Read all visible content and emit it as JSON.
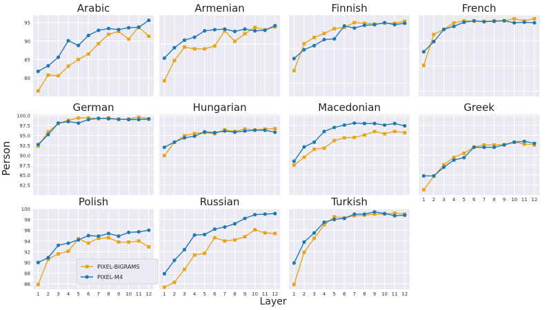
{
  "figure": {
    "ylabel": "Person",
    "xlabel": "Layer"
  },
  "legend": {
    "placement": "lower-left of Polish panel",
    "entries": [
      {
        "name": "PIXEL-BIGRAMS",
        "color": "#E8A317",
        "marker": "square"
      },
      {
        "name": "PIXEL-M4",
        "color": "#1F78B4",
        "marker": "circle"
      }
    ]
  },
  "chart_data": [
    {
      "type": "line",
      "title": "Arabic",
      "x": [
        1,
        2,
        3,
        4,
        5,
        6,
        7,
        8,
        9,
        10,
        11,
        12
      ],
      "ylim": [
        75,
        97
      ],
      "yticks": [
        "80",
        "85",
        "90",
        "95"
      ],
      "ytick_values": [
        80,
        85,
        90,
        95
      ],
      "series": [
        {
          "name": "PIXEL-BIGRAMS",
          "values": [
            76.5,
            80.8,
            80.6,
            83.2,
            85.0,
            86.5,
            89.3,
            91.8,
            92.6,
            90.5,
            93.8,
            91.3
          ]
        },
        {
          "name": "PIXEL-M4",
          "values": [
            81.8,
            83.3,
            85.6,
            90.1,
            88.8,
            91.5,
            92.9,
            93.4,
            93.1,
            93.6,
            93.7,
            95.6
          ]
        }
      ]
    },
    {
      "type": "line",
      "title": "Armenian",
      "x": [
        1,
        2,
        3,
        4,
        5,
        6,
        7,
        8,
        9,
        10,
        11,
        12
      ],
      "ylim": [
        86,
        100
      ],
      "yticks": [],
      "ytick_values": [],
      "series": [
        {
          "name": "PIXEL-BIGRAMS",
          "values": [
            88.7,
            92.2,
            94.5,
            94.2,
            94.2,
            94.7,
            97.3,
            95.5,
            96.8,
            97.9,
            97.5,
            98.0
          ]
        },
        {
          "name": "PIXEL-M4",
          "values": [
            92.6,
            94.4,
            95.7,
            96.2,
            97.3,
            97.5,
            97.6,
            97.2,
            97.6,
            97.3,
            97.4,
            98.2
          ]
        }
      ]
    },
    {
      "type": "line",
      "title": "Finnish",
      "x": [
        1,
        2,
        3,
        4,
        5,
        6,
        7,
        8,
        9,
        10,
        11,
        12
      ],
      "ylim": [
        88,
        100
      ],
      "yticks": [],
      "ytick_values": [],
      "series": [
        {
          "name": "PIXEL-BIGRAMS",
          "values": [
            91.8,
            95.8,
            96.7,
            97.3,
            98.0,
            98.2,
            98.9,
            98.8,
            98.7,
            98.8,
            98.8,
            99.1
          ]
        },
        {
          "name": "PIXEL-M4",
          "values": [
            93.6,
            94.9,
            95.5,
            96.4,
            96.5,
            98.4,
            98.1,
            98.5,
            98.6,
            98.9,
            98.6,
            98.8
          ]
        }
      ]
    },
    {
      "type": "line",
      "title": "French",
      "x": [
        1,
        2,
        3,
        4,
        5,
        6,
        7,
        8,
        9,
        10,
        11,
        12
      ],
      "ylim": [
        84,
        100
      ],
      "yticks": [],
      "ytick_values": [],
      "series": [
        {
          "name": "PIXEL-BIGRAMS",
          "values": [
            90.1,
            96.2,
            97.2,
            98.5,
            98.9,
            98.8,
            98.8,
            98.9,
            98.9,
            99.3,
            98.9,
            99.3
          ]
        },
        {
          "name": "PIXEL-M4",
          "values": [
            92.8,
            94.8,
            97.2,
            97.8,
            98.6,
            98.9,
            98.7,
            98.8,
            98.9,
            98.5,
            98.6,
            98.5
          ]
        }
      ]
    },
    {
      "type": "line",
      "title": "German",
      "x": [
        1,
        2,
        3,
        4,
        5,
        6,
        7,
        8,
        9,
        10,
        11,
        12
      ],
      "ylim": [
        80,
        100.3
      ],
      "yticks": [
        "82.5",
        "85.0",
        "87.5",
        "90.0",
        "92.5",
        "95.0",
        "97.5",
        "100.0"
      ],
      "ytick_values": [
        82.5,
        85,
        87.5,
        90,
        92.5,
        95,
        97.5,
        100
      ],
      "series": [
        {
          "name": "PIXEL-BIGRAMS",
          "values": [
            92.3,
            95.9,
            98.0,
            98.8,
            99.4,
            99.4,
            99.2,
            99.4,
            99.0,
            99.1,
            99.6,
            99.2
          ]
        },
        {
          "name": "PIXEL-M4",
          "values": [
            92.7,
            95.2,
            98.1,
            98.5,
            98.1,
            99.0,
            99.3,
            99.2,
            99.1,
            99.0,
            99.0,
            99.1
          ]
        }
      ]
    },
    {
      "type": "line",
      "title": "Hungarian",
      "x": [
        1,
        2,
        3,
        4,
        5,
        6,
        7,
        8,
        9,
        10,
        11,
        12
      ],
      "ylim": [
        80,
        100.3
      ],
      "yticks": [],
      "ytick_values": [],
      "series": [
        {
          "name": "PIXEL-BIGRAMS",
          "values": [
            89.9,
            93.3,
            94.9,
            95.5,
            95.7,
            95.4,
            96.4,
            96.0,
            96.6,
            96.4,
            96.6,
            96.7
          ]
        },
        {
          "name": "PIXEL-M4",
          "values": [
            92.0,
            93.3,
            94.4,
            94.8,
            95.9,
            95.7,
            96.1,
            95.8,
            96.1,
            96.3,
            96.3,
            95.8
          ]
        }
      ]
    },
    {
      "type": "line",
      "title": "Macedonian",
      "x": [
        1,
        2,
        3,
        4,
        5,
        6,
        7,
        8,
        9,
        10,
        11,
        12
      ],
      "ylim": [
        80,
        100.3
      ],
      "yticks": [],
      "ytick_values": [],
      "series": [
        {
          "name": "PIXEL-BIGRAMS",
          "values": [
            87.5,
            89.5,
            91.5,
            91.8,
            93.7,
            94.4,
            94.5,
            95.1,
            96.0,
            95.4,
            96.0,
            95.7
          ]
        },
        {
          "name": "PIXEL-M4",
          "values": [
            88.5,
            92.1,
            93.3,
            96.0,
            97.0,
            97.6,
            98.1,
            98.0,
            98.0,
            97.6,
            98.0,
            97.4
          ]
        }
      ]
    },
    {
      "type": "line",
      "title": "Greek",
      "x": [
        1,
        2,
        3,
        4,
        5,
        6,
        7,
        8,
        9,
        10,
        11,
        12
      ],
      "ylim": [
        80,
        100.3
      ],
      "yticks": [],
      "ytick_values": [],
      "series": [
        {
          "name": "PIXEL-BIGRAMS",
          "values": [
            81.3,
            84.7,
            87.6,
            89.5,
            90.5,
            92.1,
            92.6,
            92.6,
            92.7,
            93.3,
            92.8,
            92.6
          ]
        },
        {
          "name": "PIXEL-M4",
          "values": [
            84.8,
            84.8,
            87.0,
            88.8,
            89.4,
            92.0,
            92.0,
            92.0,
            92.6,
            93.3,
            93.5,
            93.0
          ]
        }
      ]
    },
    {
      "type": "line",
      "title": "Polish",
      "x": [
        1,
        2,
        3,
        4,
        5,
        6,
        7,
        8,
        9,
        10,
        11,
        12
      ],
      "ylim": [
        85,
        100
      ],
      "yticks": [
        "86",
        "88",
        "90",
        "92",
        "94",
        "96",
        "98",
        "100"
      ],
      "ytick_values": [
        86,
        88,
        90,
        92,
        94,
        96,
        98,
        100
      ],
      "series": [
        {
          "name": "PIXEL-BIGRAMS",
          "values": [
            85.9,
            90.6,
            91.6,
            92.1,
            94.4,
            93.6,
            94.5,
            94.6,
            93.8,
            93.8,
            94.0,
            92.9
          ]
        },
        {
          "name": "PIXEL-M4",
          "values": [
            90.0,
            90.9,
            93.2,
            93.6,
            94.2,
            95.0,
            94.9,
            95.4,
            94.9,
            95.6,
            95.7,
            96.0
          ]
        }
      ]
    },
    {
      "type": "line",
      "title": "Russian",
      "x": [
        1,
        2,
        3,
        4,
        5,
        6,
        7,
        8,
        9,
        10,
        11,
        12
      ],
      "ylim": [
        85,
        100
      ],
      "yticks": [],
      "ytick_values": [],
      "series": [
        {
          "name": "PIXEL-BIGRAMS",
          "values": [
            85.4,
            86.3,
            88.7,
            91.4,
            91.7,
            94.6,
            94.0,
            94.2,
            94.8,
            96.1,
            95.5,
            95.4
          ]
        },
        {
          "name": "PIXEL-M4",
          "values": [
            87.9,
            90.4,
            92.4,
            95.1,
            95.2,
            96.2,
            96.6,
            97.2,
            98.2,
            98.9,
            99.0,
            99.1
          ]
        }
      ]
    },
    {
      "type": "line",
      "title": "Turkish",
      "x": [
        1,
        2,
        3,
        4,
        5,
        6,
        7,
        8,
        9,
        10,
        11,
        12
      ],
      "ylim": [
        85,
        100
      ],
      "yticks": [],
      "ytick_values": [],
      "series": [
        {
          "name": "PIXEL-BIGRAMS",
          "values": [
            85.9,
            91.9,
            94.5,
            97.0,
            98.5,
            98.3,
            98.7,
            98.8,
            99.0,
            99.0,
            99.2,
            99.0
          ]
        },
        {
          "name": "PIXEL-M4",
          "values": [
            89.9,
            93.8,
            95.5,
            97.5,
            98.0,
            98.2,
            99.0,
            99.0,
            99.4,
            99.1,
            98.7,
            98.8
          ]
        }
      ]
    }
  ]
}
